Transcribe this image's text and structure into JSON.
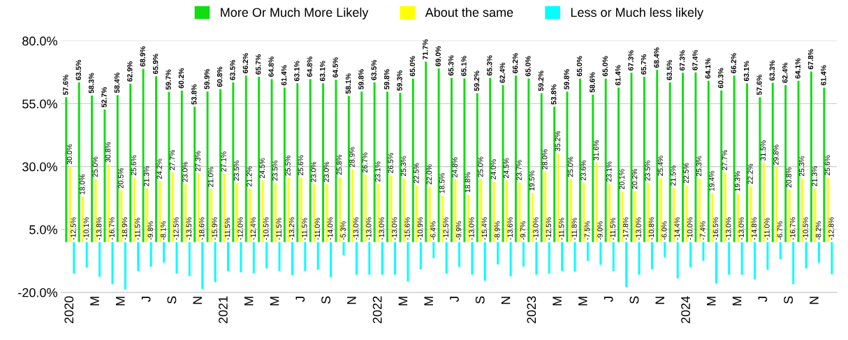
{
  "chart_data": {
    "type": "bar",
    "categories": [
      "2020",
      null,
      "M",
      null,
      "M",
      null,
      "J",
      null,
      "S",
      null,
      "N",
      null,
      "2021",
      null,
      "M",
      null,
      "M",
      null,
      "J",
      null,
      "S",
      null,
      "N",
      null,
      "2022",
      null,
      "M",
      null,
      "M",
      null,
      "J",
      null,
      "S",
      null,
      "N",
      null,
      "2023",
      null,
      "M",
      null,
      "M",
      null,
      "J",
      null,
      "S",
      null,
      "N",
      null,
      "2024",
      null,
      "M",
      null,
      "M",
      null,
      "J",
      null,
      "S",
      null,
      "N",
      null
    ],
    "series": [
      {
        "name": "More Or Much More Likely",
        "color": "#11dd11",
        "values": [
          57.6,
          63.5,
          58.3,
          52.7,
          58.4,
          62.9,
          68.9,
          65.9,
          59.7,
          60.2,
          53.8,
          59.9,
          60.8,
          63.5,
          66.2,
          65.7,
          64.8,
          61.4,
          63.1,
          64.8,
          63.1,
          64.5,
          58.1,
          59.8,
          63.5,
          59.8,
          59.3,
          65.0,
          71.7,
          69.0,
          65.3,
          65.1,
          59.2,
          65.3,
          62.4,
          66.2,
          65.0,
          59.2,
          53.8,
          59.8,
          65.0,
          58.6,
          65.0,
          61.4,
          67.3,
          65.7,
          68.4,
          63.5,
          67.3,
          67.4,
          64.1,
          60.3,
          66.2,
          63.1,
          57.6,
          63.3,
          62.4,
          64.1,
          67.8,
          61.4
        ],
        "value_labels": [
          "57.6%",
          "63.5%",
          "58.3%",
          "52.7%",
          "58.4%",
          "62.9%",
          "68.9%",
          "65.9%",
          "59.7%",
          "60.2%",
          "53.8%",
          "59.9%",
          "60.8%",
          "63.5%",
          "66.2%",
          "65.7%",
          "64.8%",
          "61.4%",
          "63.1%",
          "64.8%",
          "63.1%",
          "64.5%",
          "58.1%",
          "59.8%",
          "63.5%",
          "59.8%",
          "59.3%",
          "65.0%",
          "71.7%",
          "69.0%",
          "65.3%",
          "65.1%",
          "59.2%",
          "65.3%",
          "62.4%",
          "66.2%",
          "65.0%",
          "59.2%",
          "53.8%",
          "59.8%",
          "65.0%",
          "58.6%",
          "65.0%",
          "61.4%",
          "67.3%",
          "65.7%",
          "68.4%",
          "63.5%",
          "67.3%",
          "67.4%",
          "64.1%",
          "60.3%",
          "66.2%",
          "63.1%",
          "57.6%",
          "63.3%",
          "62.4%",
          "64.1%",
          "67.8%",
          "61.4%"
        ]
      },
      {
        "name": "About the same",
        "color": "#ffff00",
        "values": [
          30.0,
          18.0,
          25.0,
          30.8,
          20.5,
          25.6,
          21.3,
          24.2,
          27.7,
          23.0,
          27.3,
          21.0,
          27.1,
          23.5,
          21.2,
          24.5,
          23.5,
          25.5,
          25.6,
          23.0,
          23.0,
          25.8,
          28.9,
          26.7,
          23.1,
          26.5,
          25.3,
          22.5,
          22.0,
          18.5,
          24.8,
          18.8,
          25.0,
          24.0,
          24.5,
          23.7,
          19.5,
          28.0,
          35.2,
          25.0,
          23.6,
          31.6,
          23.1,
          20.1,
          20.2,
          23.5,
          25.4,
          21.5,
          22.5,
          25.3,
          19.4,
          27.7,
          19.3,
          22.2,
          31.5,
          29.8,
          20.8,
          25.3,
          21.3,
          25.6
        ],
        "value_labels": [
          "30.0%",
          "18.0%",
          "25.0%",
          "30.8%",
          "20.5%",
          "25.6%",
          "21.3%",
          "24.2%",
          "27.7%",
          "23.0%",
          "27.3%",
          "21.0%",
          "27.1%",
          "23.5%",
          "21.2%",
          "24.5%",
          "23.5%",
          "25.5%",
          "25.6%",
          "23.0%",
          "23.0%",
          "25.8%",
          "28.9%",
          "26.7%",
          "23.1%",
          "26.5%",
          "25.3%",
          "22.5%",
          "22.0%",
          "18.5%",
          "24.8%",
          "18.8%",
          "25.0%",
          "24.0%",
          "24.5%",
          "23.7%",
          "19.5%",
          "28.0%",
          "35.2%",
          "25.0%",
          "23.6%",
          "31.6%",
          "23.1%",
          "20.1%",
          "20.2%",
          "23.5%",
          "25.4%",
          "21.5%",
          "22.5%",
          "25.3%",
          "19.4%",
          "27.7%",
          "19.3%",
          "22.2%",
          "31.5%",
          "29.8%",
          "20.8%",
          "25.3%",
          "21.3%",
          "25.6%"
        ]
      },
      {
        "name": "Less or Much less likely",
        "color": "#00ffff",
        "values": [
          -12.5,
          -10.1,
          -13.8,
          -16.7,
          -18.9,
          -11.5,
          -9.8,
          -8.1,
          -12.5,
          -13.5,
          -18.6,
          -15.9,
          -11.5,
          -12.0,
          -12.4,
          -10.5,
          -11.5,
          -13.2,
          -11.5,
          -11.0,
          -14.0,
          -5.3,
          -13.0,
          -13.0,
          -13.0,
          -13.0,
          -15.6,
          -10.9,
          -6.4,
          -12.5,
          -9.9,
          -13.0,
          -15.4,
          -8.9,
          -13.6,
          -9.7,
          -13.0,
          -12.5,
          -11.5,
          -11.8,
          -7.5,
          -9.0,
          -11.5,
          -17.8,
          -13.0,
          -10.8,
          -6.0,
          -14.4,
          -10.0,
          -7.4,
          -16.5,
          -13.0,
          -13.0,
          -14.8,
          -11.0,
          -6.7,
          -16.7,
          -10.5,
          -8.2,
          -12.8
        ],
        "value_labels": [
          "-12.5%",
          "-10.1%",
          "-13.8%",
          "-16.7%",
          "-18.9%",
          "-11.5%",
          "-9.8%",
          "-8.1%",
          "-12.5%",
          "-13.5%",
          "-18.6%",
          "-15.9%",
          "-11.5%",
          "-12.0%",
          "-12.4%",
          "-10.5%",
          "-11.5%",
          "-13.2%",
          "-11.5%",
          "-11.0%",
          "-14.0%",
          "-5.3%",
          "-13.0%",
          "-13.0%",
          "-13.0%",
          "-13.0%",
          "-15.6%",
          "-10.9%",
          "-6.4%",
          "-12.5%",
          "-9.9%",
          "-13.0%",
          "-15.4%",
          "-8.9%",
          "-13.6%",
          "-9.7%",
          "-13.0%",
          "-12.5%",
          "-11.5%",
          "-11.8%",
          "-7.5%",
          "-9.0%",
          "-11.5%",
          "-17.8%",
          "-13.0%",
          "-10.8%",
          "-6.0%",
          "-14.4%",
          "-10.0%",
          "-7.4%",
          "-16.5%",
          "-13.0%",
          "-13.0%",
          "-14.8%",
          "-11.0%",
          "-6.7%",
          "-16.7%",
          "-10.5%",
          "-8.2%",
          "-12.8%"
        ]
      }
    ],
    "ylim": [
      -20,
      80
    ],
    "yticks": [
      {
        "value": -20,
        "label": "-20.0%"
      },
      {
        "value": 5,
        "label": "5.0%"
      },
      {
        "value": 30,
        "label": "30.0%"
      },
      {
        "value": 55,
        "label": "55.0%"
      },
      {
        "value": 80,
        "label": "80.0%"
      }
    ],
    "grid": "y",
    "legend": "top"
  }
}
